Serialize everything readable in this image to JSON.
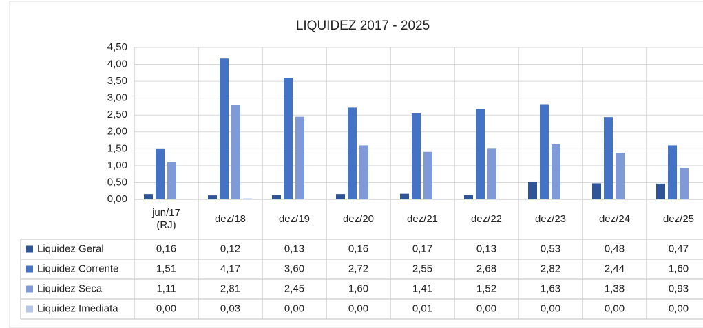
{
  "chart_data": {
    "type": "bar",
    "title": "LIQUIDEZ 2017 - 2025",
    "categories": [
      "jun/17 (RJ)",
      "dez/18",
      "dez/19",
      "dez/20",
      "dez/21",
      "dez/22",
      "dez/23",
      "dez/24",
      "dez/25"
    ],
    "series": [
      {
        "name": "Liquidez Geral",
        "color": "#2f5597",
        "values": [
          0.16,
          0.12,
          0.13,
          0.16,
          0.17,
          0.13,
          0.53,
          0.48,
          0.47
        ],
        "value_labels": [
          "0,16",
          "0,12",
          "0,13",
          "0,16",
          "0,17",
          "0,13",
          "0,53",
          "0,48",
          "0,47"
        ]
      },
      {
        "name": "Liquidez Corrente",
        "color": "#4472c4",
        "values": [
          1.51,
          4.17,
          3.6,
          2.72,
          2.55,
          2.68,
          2.82,
          2.44,
          1.6
        ],
        "value_labels": [
          "1,51",
          "4,17",
          "3,60",
          "2,72",
          "2,55",
          "2,68",
          "2,82",
          "2,44",
          "1,60"
        ]
      },
      {
        "name": "Liquidez Seca",
        "color": "#7f9ad6",
        "values": [
          1.11,
          2.81,
          2.45,
          1.6,
          1.41,
          1.52,
          1.63,
          1.38,
          0.93
        ],
        "value_labels": [
          "1,11",
          "2,81",
          "2,45",
          "1,60",
          "1,41",
          "1,52",
          "1,63",
          "1,38",
          "0,93"
        ]
      },
      {
        "name": "Liquidez Imediata",
        "color": "#b4c7e7",
        "values": [
          0.0,
          0.03,
          0.0,
          0.0,
          0.01,
          0.0,
          0.0,
          0.0,
          0.0
        ],
        "value_labels": [
          "0,00",
          "0,03",
          "0,00",
          "0,00",
          "0,01",
          "0,00",
          "0,00",
          "0,00",
          "0,00"
        ]
      }
    ],
    "ylim": [
      0,
      4.5
    ],
    "yticks": [
      {
        "value": 0,
        "label": "0,00"
      },
      {
        "value": 0.5,
        "label": "0,50"
      },
      {
        "value": 1,
        "label": "1,00"
      },
      {
        "value": 1.5,
        "label": "1,50"
      },
      {
        "value": 2,
        "label": "2,00"
      },
      {
        "value": 2.5,
        "label": "2,50"
      },
      {
        "value": 3,
        "label": "3,00"
      },
      {
        "value": 3.5,
        "label": "3,50"
      },
      {
        "value": 4,
        "label": "4,00"
      },
      {
        "value": 4.5,
        "label": "4,50"
      }
    ],
    "grid": true
  }
}
